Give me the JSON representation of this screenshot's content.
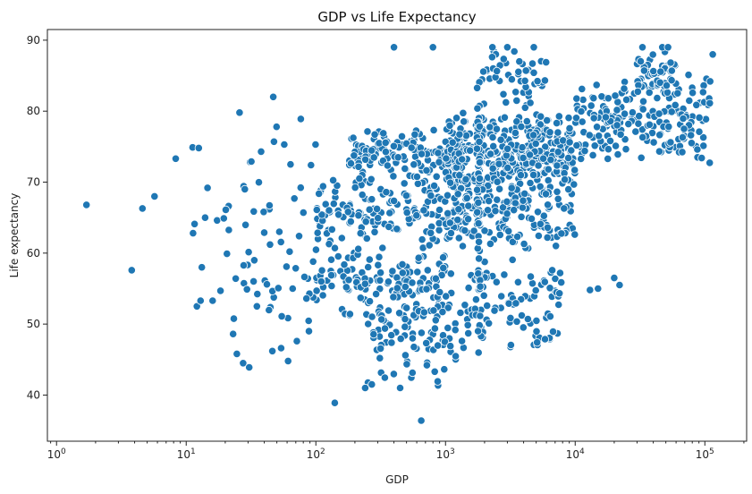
{
  "chart_data": {
    "type": "scatter",
    "title": "GDP vs Life Expectancy",
    "xlabel": "GDP",
    "ylabel": "Life expectancy",
    "xscale": "log",
    "xlim": [
      0.85,
      210000
    ],
    "ylim": [
      33.5,
      91.5
    ],
    "x_ticks": [
      {
        "value": 1,
        "label": "10",
        "exp": "0"
      },
      {
        "value": 10,
        "label": "10",
        "exp": "1"
      },
      {
        "value": 100,
        "label": "10",
        "exp": "2"
      },
      {
        "value": 1000,
        "label": "10",
        "exp": "3"
      },
      {
        "value": 10000,
        "label": "10",
        "exp": "4"
      },
      {
        "value": 100000,
        "label": "10",
        "exp": "5"
      }
    ],
    "y_ticks": [
      {
        "value": 40,
        "label": "40"
      },
      {
        "value": 50,
        "label": "50"
      },
      {
        "value": 60,
        "label": "60"
      },
      {
        "value": 70,
        "label": "70"
      },
      {
        "value": 80,
        "label": "80"
      },
      {
        "value": 90,
        "label": "90"
      }
    ],
    "grid": false,
    "marker_color": "#1f77b4",
    "series": [
      {
        "points": [
          [
            1.7,
            66.8
          ],
          [
            3.8,
            57.6
          ],
          [
            4.6,
            66.3
          ],
          [
            5.7,
            68.0
          ],
          [
            8.3,
            73.3
          ],
          [
            11.2,
            74.9
          ],
          [
            12.5,
            74.8
          ],
          [
            11.3,
            62.8
          ],
          [
            11.6,
            64.1
          ],
          [
            12.1,
            52.5
          ],
          [
            12.9,
            53.3
          ],
          [
            13.2,
            58.0
          ],
          [
            14.0,
            65.0
          ],
          [
            14.6,
            69.2
          ],
          [
            16.0,
            53.3
          ],
          [
            17.3,
            64.6
          ],
          [
            18.4,
            54.7
          ],
          [
            19.5,
            64.9
          ],
          [
            20.2,
            66.1
          ],
          [
            20.6,
            59.9
          ],
          [
            23.0,
            48.6
          ],
          [
            24.6,
            45.8
          ],
          [
            25.8,
            79.8
          ],
          [
            27.5,
            44.5
          ],
          [
            28.3,
            69.0
          ],
          [
            29.4,
            54.9
          ],
          [
            30.6,
            43.9
          ],
          [
            31.8,
            72.9
          ],
          [
            33.5,
            59.0
          ],
          [
            35.1,
            52.5
          ],
          [
            37.8,
            74.3
          ],
          [
            39.6,
            65.8
          ],
          [
            41.9,
            55.6
          ],
          [
            44.3,
            61.2
          ],
          [
            46.2,
            46.2
          ],
          [
            46.9,
            82.0
          ],
          [
            47.5,
            75.7
          ],
          [
            49.8,
            77.8
          ],
          [
            52.3,
            63.0
          ],
          [
            54.6,
            51.1
          ],
          [
            57.0,
            75.3
          ],
          [
            59.4,
            58.1
          ],
          [
            61.1,
            44.8
          ],
          [
            63.8,
            72.5
          ],
          [
            66.2,
            55.0
          ],
          [
            68.3,
            67.7
          ],
          [
            71.4,
            47.6
          ],
          [
            74.2,
            62.4
          ],
          [
            76.5,
            78.9
          ],
          [
            80.1,
            65.7
          ],
          [
            84.6,
            53.6
          ],
          [
            88.4,
            49.0
          ],
          [
            91.7,
            72.4
          ],
          [
            95.2,
            58.8
          ],
          [
            99.5,
            75.3
          ]
        ],
        "clusters": [
          {
            "n": 120,
            "x": [
              100,
              1000
            ],
            "y": [
              50,
              62
            ]
          },
          {
            "n": 170,
            "x": [
              100,
              1600
            ],
            "y": [
              60,
              72
            ]
          },
          {
            "n": 150,
            "x": [
              180,
              1500
            ],
            "y": [
              70,
              78
            ]
          },
          {
            "n": 110,
            "x": [
              250,
              1500
            ],
            "y": [
              40,
              58
            ]
          },
          {
            "n": 360,
            "x": [
              1000,
              10000
            ],
            "y": [
              68,
              80
            ]
          },
          {
            "n": 160,
            "x": [
              1000,
              10000
            ],
            "y": [
              60,
              72
            ]
          },
          {
            "n": 90,
            "x": [
              1500,
              8000
            ],
            "y": [
              45,
              60
            ]
          },
          {
            "n": 50,
            "x": [
              1800,
              6000
            ],
            "y": [
              80,
              89
            ]
          },
          {
            "n": 200,
            "x": [
              10000,
              110000
            ],
            "y": [
              72,
              86
            ]
          },
          {
            "n": 50,
            "x": [
              30000,
              60000
            ],
            "y": [
              82,
              89
            ]
          },
          {
            "n": 40,
            "x": [
              20,
              120
            ],
            "y": [
              44,
              75
            ]
          },
          {
            "n": 60,
            "x": [
              1800,
              1800
            ],
            "y": [
              47,
              87
            ]
          }
        ]
      }
    ]
  }
}
